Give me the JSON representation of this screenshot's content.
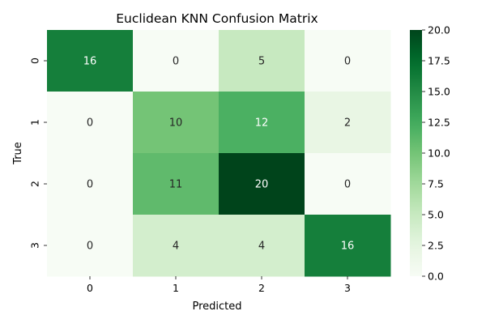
{
  "chart_data": {
    "type": "heatmap",
    "title": "Euclidean KNN Confusion Matrix",
    "xlabel": "Predicted",
    "ylabel": "True",
    "x_categories": [
      "0",
      "1",
      "2",
      "3"
    ],
    "y_categories": [
      "0",
      "1",
      "2",
      "3"
    ],
    "values": [
      [
        16,
        0,
        5,
        0
      ],
      [
        0,
        10,
        12,
        2
      ],
      [
        0,
        11,
        20,
        0
      ],
      [
        0,
        4,
        4,
        16
      ]
    ],
    "colorbar": {
      "min": 0,
      "max": 20,
      "ticks": [
        "0.0",
        "2.5",
        "5.0",
        "7.5",
        "10.0",
        "12.5",
        "15.0",
        "17.5",
        "20.0"
      ],
      "colormap": "Greens"
    },
    "grid": false,
    "legend": "colorbar-right"
  }
}
